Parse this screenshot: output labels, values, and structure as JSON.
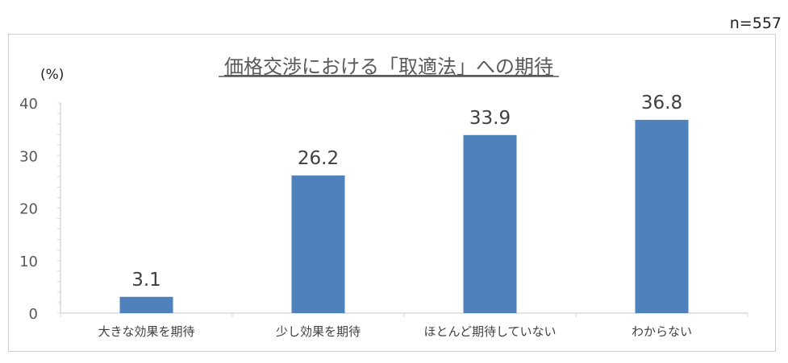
{
  "sample_size": "n=557",
  "chart_data": {
    "type": "bar",
    "title": "価格交渉における「取適法」への期待",
    "ylabel": "(%)",
    "xlabel": "",
    "categories": [
      "大きな効果を期待",
      "少し効果を期待",
      "ほとんど期待していない",
      "わからない"
    ],
    "values": [
      3.1,
      26.2,
      33.9,
      36.8
    ],
    "data_labels": [
      "3.1",
      "26.2",
      "33.9",
      "36.8"
    ],
    "ylim": [
      0,
      40
    ],
    "yticks": [
      0,
      10,
      20,
      30,
      40
    ],
    "grid": false,
    "legend": "none",
    "bar_color": "#4f81bd"
  }
}
